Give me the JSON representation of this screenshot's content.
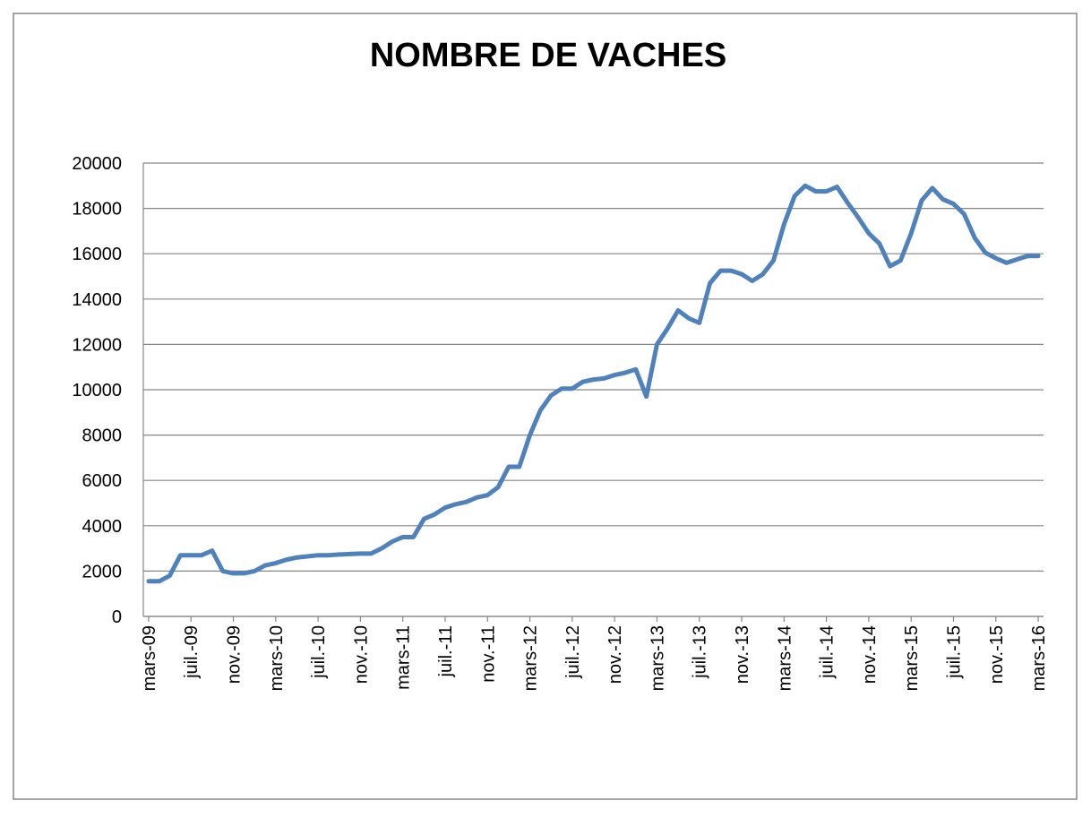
{
  "chart_data": {
    "type": "line",
    "title": "NOMBRE DE VACHES",
    "categories": [
      "mars-09",
      null,
      null,
      null,
      "juil.-09",
      null,
      null,
      null,
      "nov.-09",
      null,
      null,
      null,
      "mars-10",
      null,
      null,
      null,
      "juil.-10",
      null,
      null,
      null,
      "nov.-10",
      null,
      null,
      null,
      "mars-11",
      null,
      null,
      null,
      "juil.-11",
      null,
      null,
      null,
      "nov.-11",
      null,
      null,
      null,
      "mars-12",
      null,
      null,
      null,
      "juil.-12",
      null,
      null,
      null,
      "nov.-12",
      null,
      null,
      null,
      "mars-13",
      null,
      null,
      null,
      "juil.-13",
      null,
      null,
      null,
      "nov.-13",
      null,
      null,
      null,
      "mars-14",
      null,
      null,
      null,
      "juil.-14",
      null,
      null,
      null,
      "nov.-14",
      null,
      null,
      null,
      "mars-15",
      null,
      null,
      null,
      "juil.-15",
      null,
      null,
      null,
      "nov.-15",
      null,
      null,
      null,
      "mars-16"
    ],
    "values": [
      1550,
      1550,
      1800,
      2700,
      2700,
      2700,
      2900,
      2000,
      1900,
      1900,
      2000,
      2250,
      2350,
      2500,
      2600,
      2650,
      2700,
      2700,
      2730,
      2750,
      2770,
      2770,
      3000,
      3300,
      3500,
      3500,
      4300,
      4500,
      4800,
      4950,
      5050,
      5250,
      5350,
      5700,
      6600,
      6600,
      8000,
      9100,
      9750,
      10050,
      10050,
      10350,
      10450,
      10500,
      10650,
      10750,
      10900,
      9700,
      12000,
      12700,
      13500,
      13150,
      12950,
      14700,
      15250,
      15250,
      15100,
      14800,
      15100,
      15700,
      17300,
      18550,
      19000,
      18750,
      18750,
      18950,
      18250,
      17600,
      16900,
      16450,
      15450,
      15700,
      16900,
      18350,
      18900,
      18400,
      18200,
      17750,
      16700,
      16050,
      15800,
      15600,
      15750,
      15900,
      15900
    ],
    "color": "#4f81bd",
    "ylim": [
      0,
      20000
    ],
    "yticks": [
      0,
      2000,
      4000,
      6000,
      8000,
      10000,
      12000,
      14000,
      16000,
      18000,
      20000
    ],
    "grid": true
  }
}
